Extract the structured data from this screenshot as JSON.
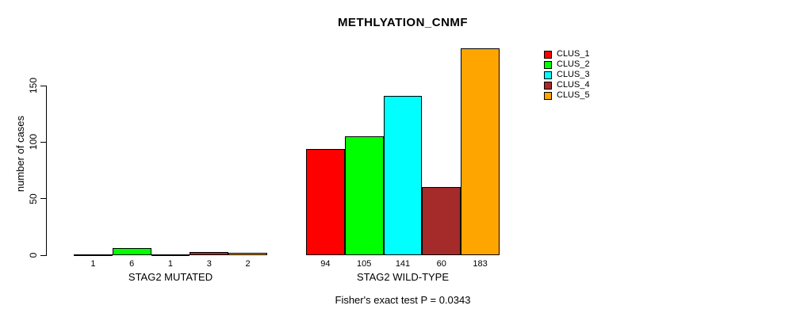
{
  "chart_data": {
    "type": "bar",
    "title": "METHLYATION_CNMF",
    "ylabel": "number of cases",
    "xlabel": "",
    "annotation": "Fisher's exact test P = 0.0343",
    "grid": false,
    "legend_position": "top-right-outside",
    "ylim": [
      0,
      190
    ],
    "yticks": [
      0,
      50,
      100,
      150
    ],
    "series_names": [
      "CLUS_1",
      "CLUS_2",
      "CLUS_3",
      "CLUS_4",
      "CLUS_5"
    ],
    "series_colors": [
      "#FF0000",
      "#00FF00",
      "#00FFFF",
      "#A52A2A",
      "#FFA500"
    ],
    "bar_border_color": "#000000",
    "background_color": "#FFFFFF",
    "groups": [
      {
        "label": "STAG2 MUTATED",
        "values": [
          1,
          6,
          1,
          3,
          2
        ]
      },
      {
        "label": "STAG2 WILD-TYPE",
        "values": [
          94,
          105,
          141,
          60,
          183
        ]
      }
    ]
  }
}
